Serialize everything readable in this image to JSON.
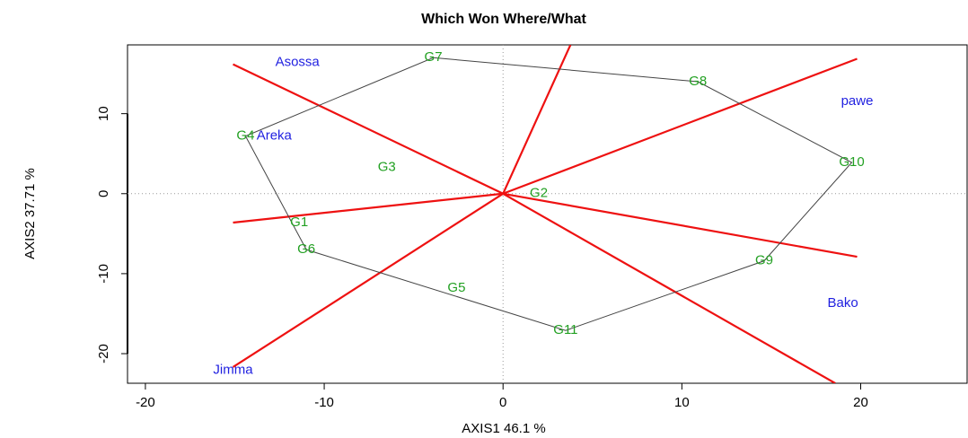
{
  "chart_data": {
    "type": "biplot",
    "title": "Which Won Where/What",
    "xlabel": "AXIS1 46.1 %",
    "ylabel": "AXIS2 37.71 %",
    "xlim": [
      -21,
      26
    ],
    "ylim": [
      -23.7,
      18.6
    ],
    "xticks": [
      -20,
      -10,
      0,
      10,
      20
    ],
    "yticks": [
      -20,
      -10,
      0,
      10
    ],
    "genotypes": {
      "labels": [
        "G1",
        "G2",
        "G3",
        "G4",
        "G5",
        "G6",
        "G7",
        "G8",
        "G9",
        "G10",
        "G11"
      ],
      "x": [
        -11.4,
        2.0,
        -6.5,
        -14.4,
        -2.6,
        -11.0,
        -3.9,
        10.9,
        14.6,
        19.5,
        3.5
      ],
      "y": [
        -3.6,
        0.0,
        3.3,
        7.2,
        -11.8,
        -7.0,
        17.0,
        14.0,
        -8.4,
        3.9,
        -17.1
      ],
      "color": "#22a022"
    },
    "environments": {
      "labels": [
        "Asossa",
        "Areka",
        "pawe",
        "Bako",
        "Jimma"
      ],
      "x": [
        -11.5,
        -12.8,
        19.8,
        19.0,
        -15.1
      ],
      "y": [
        16.4,
        7.2,
        11.5,
        -13.7,
        -22.1
      ],
      "color": "#1f1fe0"
    },
    "polygon_color": "#444444",
    "ray_color": "#ee1111"
  }
}
